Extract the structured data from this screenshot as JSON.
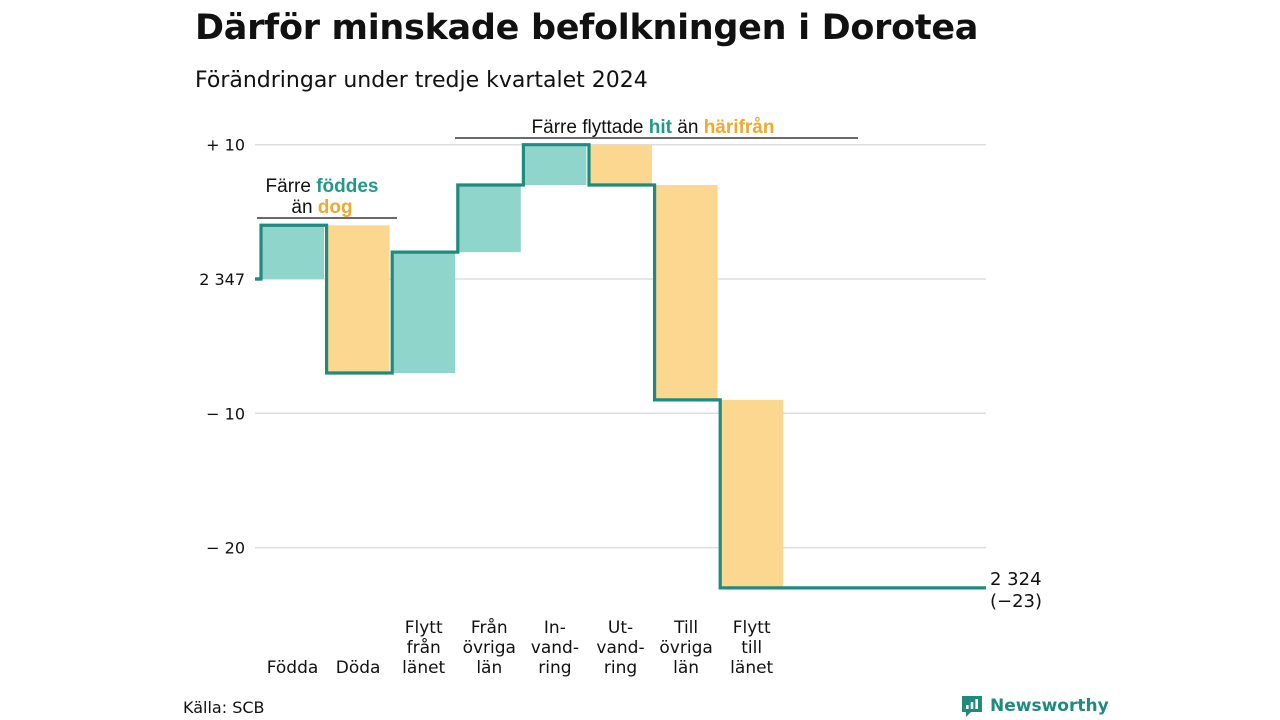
{
  "header": {
    "title": "Därför minskade befolkningen i Dorotea",
    "subtitle": "Förändringar under tredje kvartalet 2024"
  },
  "footer": {
    "source": "Källa: SCB",
    "brand": "Newsworthy"
  },
  "colors": {
    "increase": "#8fd5cc",
    "decrease": "#fcd78f",
    "line": "#1f8a7e",
    "increase_text": "#1f9a8a",
    "decrease_text": "#f0a830",
    "grid": "#dddddd"
  },
  "chart_data": {
    "type": "waterfall",
    "start_value": 2347,
    "start_label": "2 347",
    "end_value": 2324,
    "end_label": "2 324",
    "end_change_label": "(−23)",
    "yaxis": {
      "ticks": [
        {
          "value": 10,
          "label": "+ 10"
        },
        {
          "value": 0,
          "label": "2 347"
        },
        {
          "value": -10,
          "label": "− 10"
        },
        {
          "value": -20,
          "label": "− 20"
        }
      ],
      "ylim": [
        -23,
        10
      ],
      "grid": true
    },
    "steps": [
      {
        "category": [
          "Födda"
        ],
        "delta": 4,
        "kind": "increase"
      },
      {
        "category": [
          "Döda"
        ],
        "delta": -11,
        "kind": "decrease"
      },
      {
        "category": [
          "Flytt",
          "från",
          "länet"
        ],
        "delta": 9,
        "kind": "increase"
      },
      {
        "category": [
          "Från",
          "övriga",
          "län"
        ],
        "delta": 5,
        "kind": "increase"
      },
      {
        "category": [
          "In-",
          "vand-",
          "ring"
        ],
        "delta": 3,
        "kind": "increase"
      },
      {
        "category": [
          "Ut-",
          "vand-",
          "ring"
        ],
        "delta": -3,
        "kind": "decrease"
      },
      {
        "category": [
          "Till",
          "övriga",
          "län"
        ],
        "delta": -16,
        "kind": "decrease"
      },
      {
        "category": [
          "Flytt",
          "till",
          "länet"
        ],
        "delta": -14,
        "kind": "decrease"
      }
    ],
    "annotations": [
      {
        "parts": [
          "Färre",
          "föddes",
          "än",
          "dog"
        ],
        "group": "births"
      },
      {
        "parts": [
          "Färre flyttade",
          "hit",
          "än",
          "härifrån"
        ],
        "group": "migration"
      }
    ]
  }
}
